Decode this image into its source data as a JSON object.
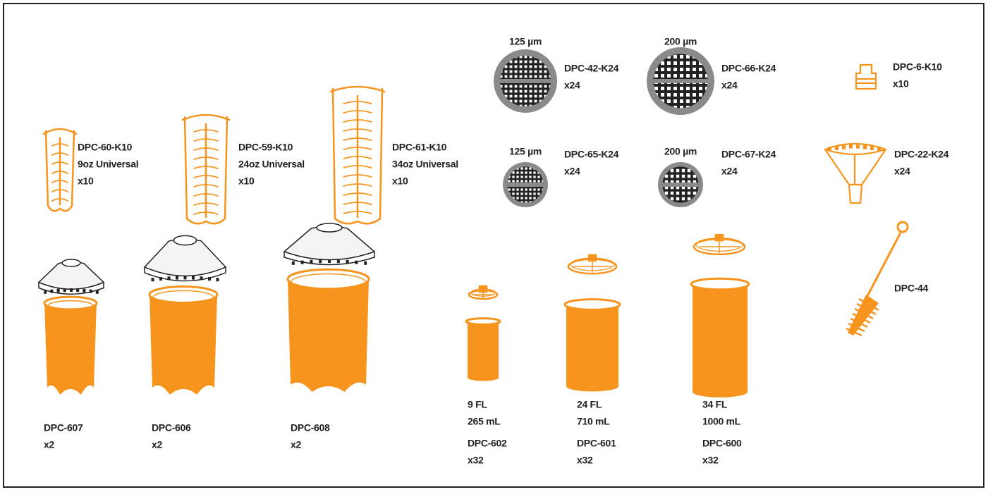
{
  "items": [
    {
      "lines": [
        "125 µm"
      ]
    },
    {
      "lines": [
        "DPC-42-K24",
        "x24"
      ]
    },
    {
      "lines": [
        "200 µm"
      ]
    },
    {
      "lines": [
        "DPC-66-K24",
        "x24"
      ]
    },
    {
      "lines": [
        "DPC-6-K10",
        "x10"
      ]
    },
    {
      "lines": [
        "DPC-60-K10",
        "9oz Universal",
        "x10"
      ]
    },
    {
      "lines": [
        "DPC-59-K10",
        "24oz Universal",
        "x10"
      ]
    },
    {
      "lines": [
        "DPC-61-K10",
        "34oz Universal",
        "x10"
      ]
    },
    {
      "lines": [
        "125 µm"
      ]
    },
    {
      "lines": [
        "DPC-65-K24",
        "x24"
      ]
    },
    {
      "lines": [
        "200 µm"
      ]
    },
    {
      "lines": [
        "DPC-67-K24",
        "x24"
      ]
    },
    {
      "lines": [
        "DPC-22-K24",
        "x24"
      ]
    },
    {
      "lines": [
        "DPC-44"
      ]
    },
    {
      "lines": [
        "DPC-607",
        "x2"
      ]
    },
    {
      "lines": [
        "DPC-606",
        "x2"
      ]
    },
    {
      "lines": [
        "DPC-608",
        "x2"
      ]
    },
    {
      "lines": [
        "9 FL",
        "265 mL"
      ]
    },
    {
      "lines": [
        "DPC-602",
        "x32"
      ]
    },
    {
      "lines": [
        "24 FL",
        "710 mL"
      ]
    },
    {
      "lines": [
        "DPC-601",
        "x32"
      ]
    },
    {
      "lines": [
        "34 FL",
        "1000 mL"
      ]
    },
    {
      "lines": [
        "DPC-600",
        "x32"
      ]
    }
  ]
}
